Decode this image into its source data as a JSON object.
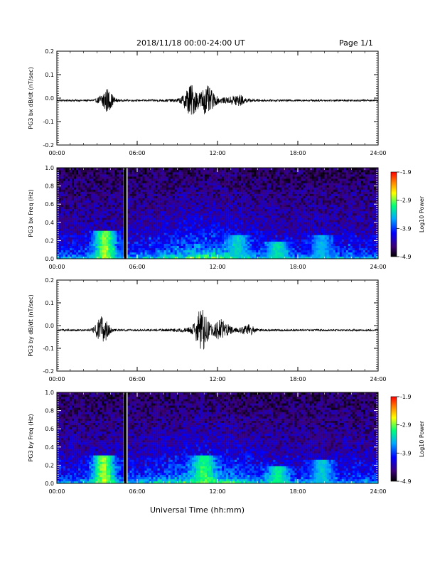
{
  "header": {
    "date_range": "2018/11/18  00:00-24:00 UT",
    "page": "Page 1/1"
  },
  "xlabel": "Universal Time (hh:mm)",
  "colorbar": {
    "label": "Log10 Power",
    "ticks": [
      "-1.9",
      "-2.9",
      "-3.9",
      "-4.9"
    ],
    "range": [
      -4.9,
      -1.9
    ],
    "colors": [
      "#000000",
      "#4b0082",
      "#0000ff",
      "#00bfff",
      "#00ff80",
      "#ffff00",
      "#ff8000",
      "#ff0000"
    ]
  },
  "chart_data": [
    {
      "type": "line",
      "ylabel": "PG3 bx dB/dt (nT/sec)",
      "x_ticks": [
        "00:00",
        "06:00",
        "12:00",
        "18:00",
        "24:00"
      ],
      "y_ticks": [
        "0.2",
        "0.1",
        "0.0",
        "-0.1",
        "-0.2"
      ],
      "xlim": [
        0,
        24
      ],
      "ylim": [
        -0.2,
        0.2
      ],
      "baseline": -0.01,
      "bursts": [
        {
          "hour": 3.7,
          "amplitude": 0.05
        },
        {
          "hour": 10.0,
          "amplitude": 0.06
        },
        {
          "hour": 11.2,
          "amplitude": 0.05
        },
        {
          "hour": 13.5,
          "amplitude": 0.02
        }
      ],
      "color": "#000000"
    },
    {
      "type": "heatmap",
      "ylabel": "PG3 bx Freq (Hz)",
      "x_ticks": [
        "00:00",
        "06:00",
        "12:00",
        "18:00",
        "24:00"
      ],
      "y_ticks": [
        "1.0",
        "0.8",
        "0.6",
        "0.4",
        "0.2",
        "0.0"
      ],
      "xlim": [
        0,
        24
      ],
      "ylim": [
        0.0,
        1.0
      ],
      "zlim": [
        -4.9,
        -1.9
      ],
      "gap_hour": 5.1,
      "features": [
        {
          "hour": 3.6,
          "freq_top": 0.3,
          "power": -2.9
        },
        {
          "hour": 13.5,
          "freq_top": 0.25,
          "power": -3.4
        },
        {
          "hour": 16.5,
          "freq_top": 0.2,
          "power": -3.3
        },
        {
          "hour": 19.8,
          "freq_top": 0.25,
          "power": -3.5
        }
      ]
    },
    {
      "type": "line",
      "ylabel": "PG3 by dB/dt (nT/sec)",
      "x_ticks": [
        "00:00",
        "06:00",
        "12:00",
        "18:00",
        "24:00"
      ],
      "y_ticks": [
        "0.2",
        "0.1",
        "0.0",
        "-0.1",
        "-0.2"
      ],
      "xlim": [
        0,
        24
      ],
      "ylim": [
        -0.2,
        0.2
      ],
      "baseline": -0.02,
      "bursts": [
        {
          "hour": 3.4,
          "amplitude": 0.06
        },
        {
          "hour": 10.8,
          "amplitude": 0.08
        },
        {
          "hour": 12.3,
          "amplitude": 0.04
        },
        {
          "hour": 14.3,
          "amplitude": 0.02
        }
      ],
      "color": "#000000"
    },
    {
      "type": "heatmap",
      "ylabel": "PG3 by Freq (Hz)",
      "x_ticks": [
        "00:00",
        "06:00",
        "12:00",
        "18:00",
        "24:00"
      ],
      "y_ticks": [
        "1.0",
        "0.8",
        "0.6",
        "0.4",
        "0.2",
        "0.0"
      ],
      "xlim": [
        0,
        24
      ],
      "ylim": [
        0.0,
        1.0
      ],
      "zlim": [
        -4.9,
        -1.9
      ],
      "gap_hour": 5.1,
      "features": [
        {
          "hour": 3.5,
          "freq_top": 0.3,
          "power": -2.9
        },
        {
          "hour": 11.0,
          "freq_top": 0.3,
          "power": -3.1
        },
        {
          "hour": 16.5,
          "freq_top": 0.2,
          "power": -3.2
        },
        {
          "hour": 19.8,
          "freq_top": 0.25,
          "power": -3.4
        }
      ]
    }
  ]
}
